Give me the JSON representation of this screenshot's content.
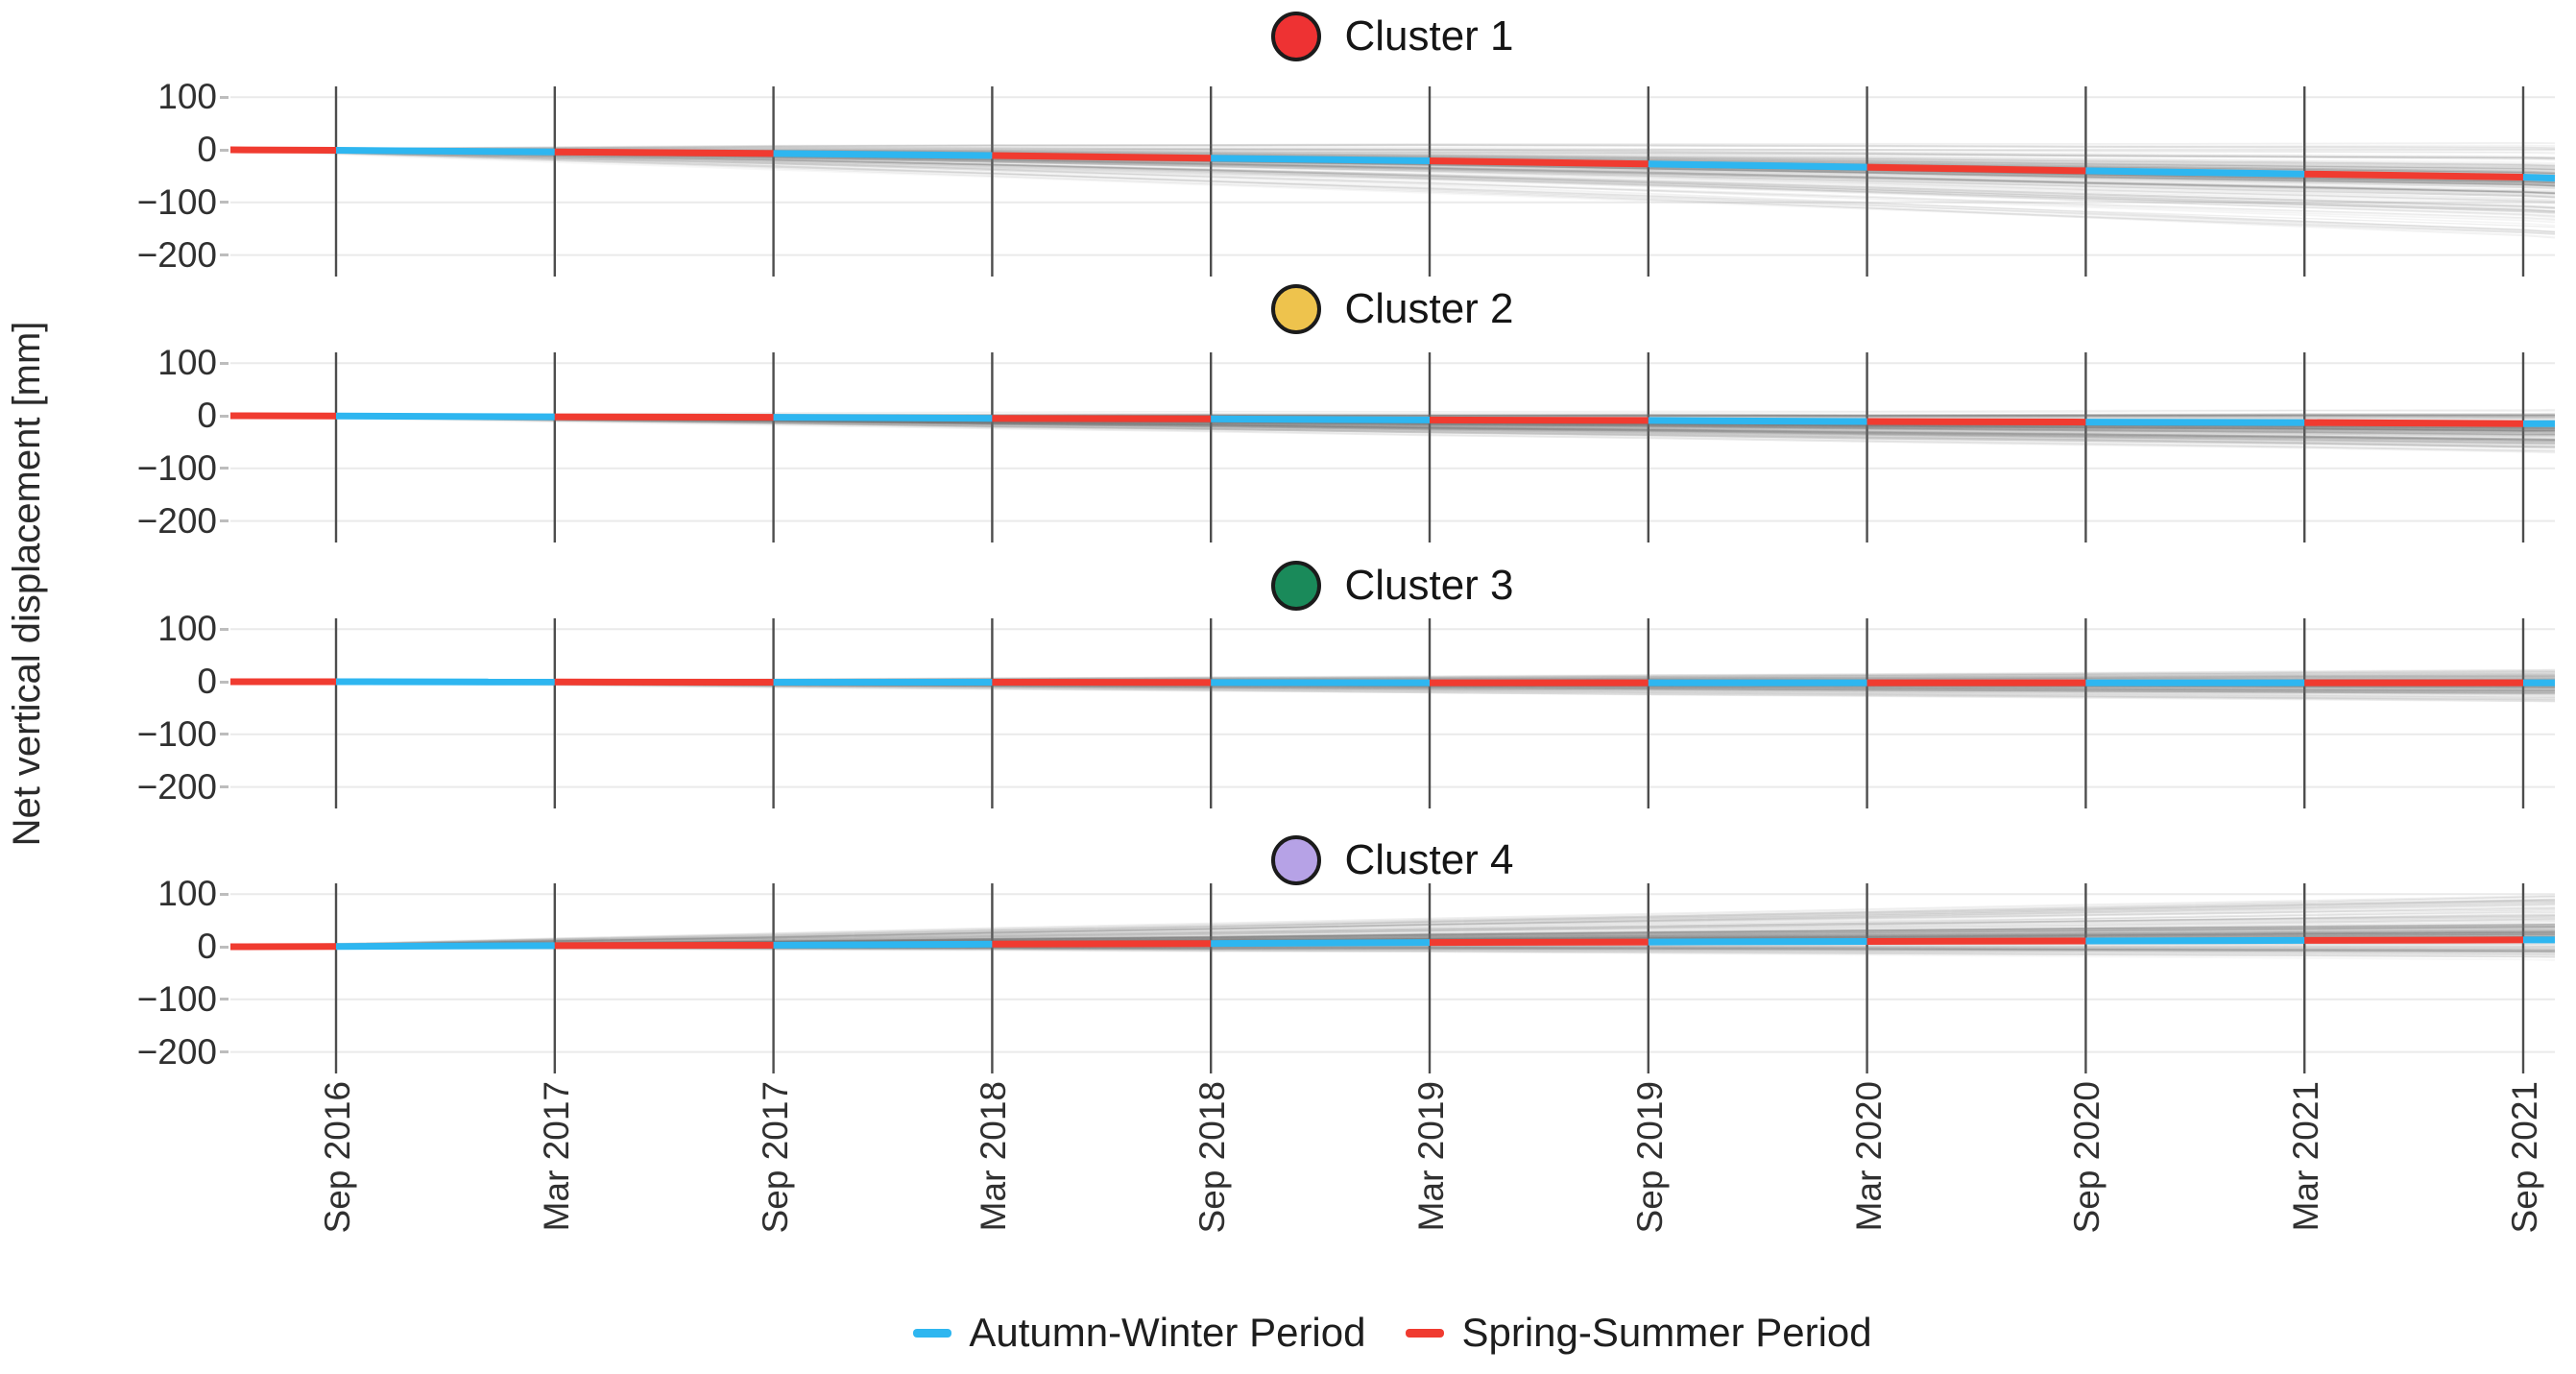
{
  "figure": {
    "ylabel": "Net vertical displacement [mm]",
    "y_tick_labels": [
      "100",
      "0",
      "−100",
      "−200"
    ],
    "x_tick_labels": [
      "Sep 2016",
      "Mar 2017",
      "Sep 2017",
      "Mar 2018",
      "Sep 2018",
      "Mar 2019",
      "Sep 2019",
      "Mar 2020",
      "Sep 2020",
      "Mar 2021",
      "Sep 2021"
    ],
    "clusters": [
      {
        "title": "Cluster 1",
        "marker_color": "#ee3233"
      },
      {
        "title": "Cluster 2",
        "marker_color": "#eec34d"
      },
      {
        "title": "Cluster 3",
        "marker_color": "#1a8a5a"
      },
      {
        "title": "Cluster 4",
        "marker_color": "#b6a2e6"
      }
    ],
    "legend": {
      "autumn_winter": {
        "label": "Autumn-Winter Period",
        "color": "#2eb6f0"
      },
      "spring_summer": {
        "label": "Spring-Summer Period",
        "color": "#f03b30"
      }
    }
  },
  "chart_data": {
    "type": "line",
    "ylabel": "Net vertical displacement [mm]",
    "y_tick_values_mm": [
      100,
      0,
      -100,
      -200
    ],
    "ylim_mm": [
      -240,
      120
    ],
    "x_tick_labels": [
      "Sep 2016",
      "Mar 2017",
      "Sep 2017",
      "Mar 2018",
      "Sep 2018",
      "Mar 2019",
      "Sep 2019",
      "Mar 2020",
      "Sep 2020",
      "Mar 2021",
      "Sep 2021"
    ],
    "x_note": "series begin about half a season before Sep 2016 and end just after Sep 2021",
    "legend": [
      {
        "name": "Autumn-Winter Period",
        "color": "#2eb6f0"
      },
      {
        "name": "Spring-Summer Period",
        "color": "#f03b30"
      }
    ],
    "season_segment_order": "first segment (up to Sep 2016) is Spring-Summer red, then alternating blue/red each half year, ending blue after Sep 2021",
    "subplots": [
      {
        "name": "Cluster 1",
        "marker_color": "#ee3233",
        "mean_x": [
          "Jun 2016",
          "Sep 2016",
          "Mar 2017",
          "Sep 2017",
          "Mar 2018",
          "Sep 2018",
          "Mar 2019",
          "Sep 2019",
          "Mar 2020",
          "Sep 2020",
          "Mar 2021",
          "Sep 2021",
          "Oct 2021"
        ],
        "mean_displacement_mm": [
          0,
          -1,
          -4,
          -7,
          -11,
          -16,
          -21,
          -27,
          -33,
          -40,
          -46,
          -52,
          -54
        ],
        "background_band_mm_at_end": {
          "dense_low": -85,
          "dense_high": -25,
          "faint_low": -165,
          "faint_high": 15
        },
        "background_lines_color": "#6f6f6f"
      },
      {
        "name": "Cluster 2",
        "marker_color": "#eec34d",
        "mean_x": [
          "Jun 2016",
          "Sep 2016",
          "Mar 2017",
          "Sep 2017",
          "Mar 2018",
          "Sep 2018",
          "Mar 2019",
          "Sep 2019",
          "Mar 2020",
          "Sep 2020",
          "Mar 2021",
          "Sep 2021",
          "Oct 2021"
        ],
        "mean_displacement_mm": [
          0,
          -0.5,
          -2,
          -3,
          -5,
          -6,
          -8,
          -9,
          -11,
          -12,
          -13,
          -15,
          -15
        ],
        "background_band_mm_at_end": {
          "dense_low": -45,
          "dense_high": 0,
          "faint_low": -68,
          "faint_high": 12
        },
        "background_lines_color": "#6f6f6f"
      },
      {
        "name": "Cluster 3",
        "marker_color": "#1a8a5a",
        "mean_x": [
          "Jun 2016",
          "Sep 2016",
          "Mar 2017",
          "Sep 2017",
          "Mar 2018",
          "Sep 2018",
          "Mar 2019",
          "Sep 2019",
          "Mar 2020",
          "Sep 2020",
          "Mar 2021",
          "Sep 2021",
          "Oct 2021"
        ],
        "mean_displacement_mm": [
          0,
          0,
          -0.5,
          -1,
          -1,
          -1.5,
          -2,
          -2,
          -2,
          -2,
          -2,
          -2,
          -2
        ],
        "background_band_mm_at_end": {
          "dense_low": -16,
          "dense_high": 10,
          "faint_low": -38,
          "faint_high": 22
        },
        "background_lines_color": "#6f6f6f"
      },
      {
        "name": "Cluster 4",
        "marker_color": "#b6a2e6",
        "mean_x": [
          "Jun 2016",
          "Sep 2016",
          "Mar 2017",
          "Sep 2017",
          "Mar 2018",
          "Sep 2018",
          "Mar 2019",
          "Sep 2019",
          "Mar 2020",
          "Sep 2020",
          "Mar 2021",
          "Sep 2021",
          "Oct 2021"
        ],
        "mean_displacement_mm": [
          0,
          0.5,
          2,
          3,
          5,
          6,
          8,
          9,
          10,
          11,
          12,
          13,
          13
        ],
        "background_band_mm_at_end": {
          "dense_low": -3,
          "dense_high": 52,
          "faint_low": -26,
          "faint_high": 96
        },
        "background_lines_color": "#6f6f6f"
      }
    ]
  }
}
